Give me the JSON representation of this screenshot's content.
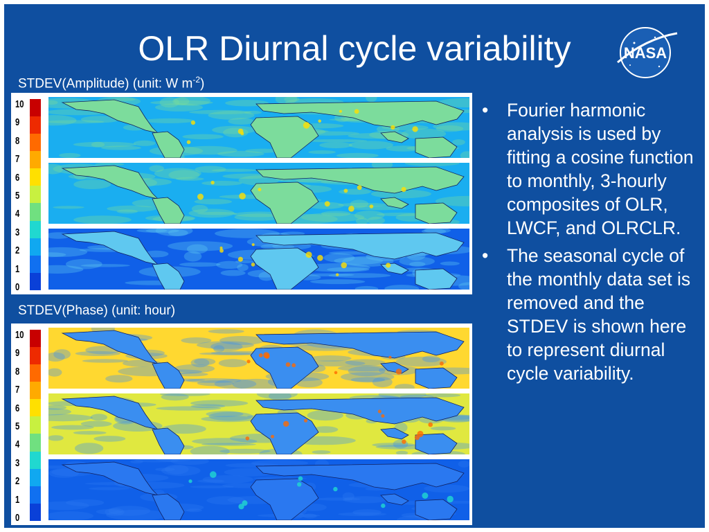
{
  "slide": {
    "title": "OLR Diurnal cycle variability",
    "logo_text": "NASA",
    "caption_amplitude_prefix": "STDEV(Amplitude) (unit: W m",
    "caption_amplitude_exp": "-2",
    "caption_amplitude_suffix": ")",
    "caption_phase": "STDEV(Phase) (unit: hour)",
    "bullets": [
      "Fourier harmonic analysis is used by fitting a cosine function to monthly, 3-hourly composites of OLR, LWCF, and OLRCLR.",
      "The seasonal cycle of the monthly data set is removed and the STDEV is shown here to represent diurnal cycle variability."
    ]
  },
  "colorbar": {
    "labels": [
      "10",
      "9",
      "8",
      "7",
      "6",
      "5",
      "4",
      "3",
      "2",
      "1",
      "0"
    ],
    "colors": [
      "#c80000",
      "#ee2a00",
      "#ff6a00",
      "#ffaa00",
      "#ffe000",
      "#c8f040",
      "#70e080",
      "#20d8d0",
      "#10a8f0",
      "#1070f0",
      "#0a40d8"
    ]
  },
  "colors": {
    "background": "#0f4fa0",
    "text": "#ffffff",
    "land": "#5fc8f0",
    "ocean_amp": "#1aaef0",
    "ocean_phase": "#ffd830",
    "deep": "#1060e8"
  }
}
